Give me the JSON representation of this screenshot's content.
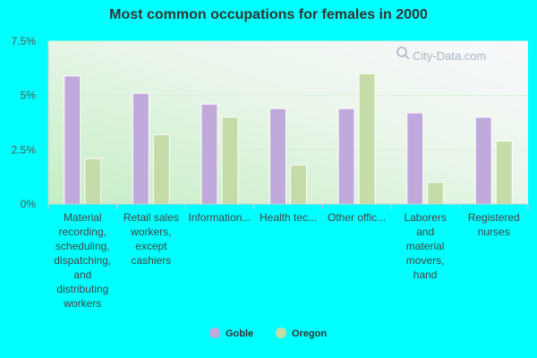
{
  "title": "Most common occupations for females in 2000",
  "watermark": "City-Data.com",
  "colors": {
    "background": "#00ffff",
    "goble": "#c0aadc",
    "oregon": "#c5dba8"
  },
  "chart_data": {
    "type": "bar",
    "title": "Most common occupations for females in 2000",
    "xlabel": "",
    "ylabel": "",
    "ylim": [
      0,
      7.5
    ],
    "yticks": [
      "0%",
      "2.5%",
      "5%",
      "7.5%"
    ],
    "ytick_values": [
      0,
      2.5,
      5,
      7.5
    ],
    "grid": true,
    "legend_position": "bottom",
    "categories": [
      [
        "Material",
        "recording,",
        "scheduling,",
        "dispatching,",
        "and",
        "distributing",
        "workers"
      ],
      [
        "Retail sales",
        "workers,",
        "except",
        "cashiers"
      ],
      [
        "Information..."
      ],
      [
        "Health tec..."
      ],
      [
        "Other offic..."
      ],
      [
        "Laborers",
        "and",
        "material",
        "movers,",
        "hand"
      ],
      [
        "Registered",
        "nurses"
      ]
    ],
    "series": [
      {
        "name": "Goble",
        "color": "#c0aadc",
        "values": [
          5.9,
          5.1,
          4.6,
          4.4,
          4.4,
          4.2,
          4.0
        ]
      },
      {
        "name": "Oregon",
        "color": "#c5dba8",
        "values": [
          2.1,
          3.2,
          4.0,
          1.8,
          6.0,
          1.0,
          2.9
        ]
      }
    ]
  }
}
